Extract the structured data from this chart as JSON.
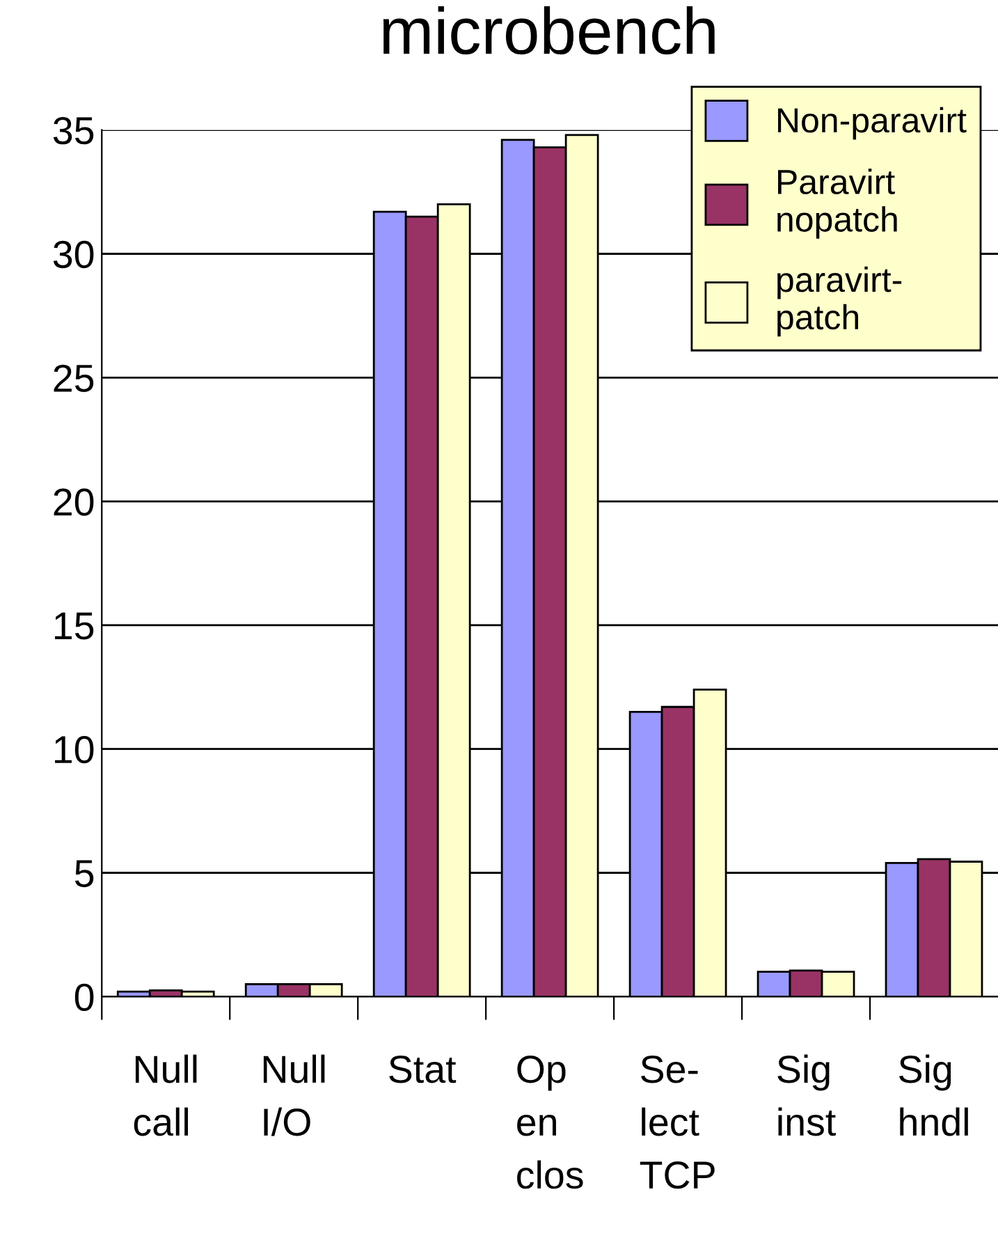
{
  "chart_data": {
    "type": "bar",
    "title": "microbench",
    "categories": [
      "Null\ncall",
      "Null\nI/O",
      "Stat",
      "Op\nen\nclos",
      "Se-\nlect\nTCP",
      "Sig\ninst",
      "Sig\nhndl"
    ],
    "series": [
      {
        "name": "Non-paravirt",
        "color": "#9999ff",
        "values": [
          0.2,
          0.5,
          31.7,
          34.6,
          11.5,
          1.0,
          5.4
        ]
      },
      {
        "name": "Paravirt\nnopatch",
        "color": "#993366",
        "values": [
          0.25,
          0.5,
          31.5,
          34.3,
          11.7,
          1.05,
          5.55
        ]
      },
      {
        "name": "paravirt-\npatch",
        "color": "#ffffcc",
        "values": [
          0.2,
          0.5,
          32.0,
          34.8,
          12.4,
          1.0,
          5.45
        ]
      }
    ],
    "ylim": [
      0,
      35
    ],
    "yticks": [
      0,
      5,
      10,
      15,
      20,
      25,
      30,
      35
    ],
    "grid": "y",
    "legend": "top right"
  }
}
